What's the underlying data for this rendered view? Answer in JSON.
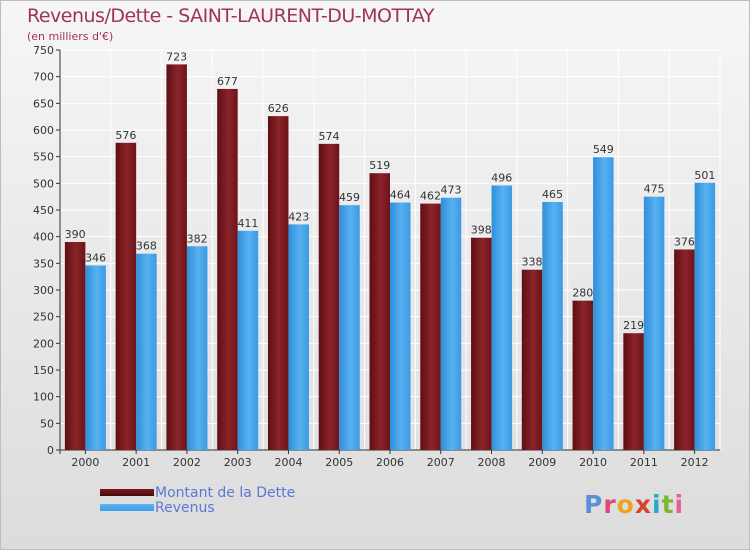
{
  "chart_data": {
    "type": "bar",
    "title": "Revenus/Dette - SAINT-LAURENT-DU-MOTTAY",
    "subtitle": "(en milliers d'€)",
    "categories": [
      "2000",
      "2001",
      "2002",
      "2003",
      "2004",
      "2005",
      "2006",
      "2007",
      "2008",
      "2009",
      "2010",
      "2011",
      "2012"
    ],
    "series": [
      {
        "name": "Montant de la Dette",
        "color": "#7a1a1e",
        "values": [
          390,
          576,
          723,
          677,
          626,
          574,
          519,
          462,
          398,
          338,
          280,
          219,
          376
        ]
      },
      {
        "name": "Revenus",
        "color": "#3d9ee6",
        "values": [
          346,
          368,
          382,
          411,
          423,
          459,
          464,
          473,
          496,
          465,
          549,
          475,
          501
        ]
      }
    ],
    "ylim": [
      0,
      750
    ],
    "yticks": [
      0,
      50,
      100,
      150,
      200,
      250,
      300,
      350,
      400,
      450,
      500,
      550,
      600,
      650,
      700,
      750
    ],
    "grid": true,
    "legend_position": "bottom-left"
  },
  "legend": {
    "debt_label": "Montant de la Dette",
    "revenue_label": "Revenus",
    "debt_color": "#7a1a1e",
    "revenue_color": "#3d9ee6"
  },
  "logo": {
    "text": "Proxiti",
    "letter_colors": [
      "#5a8fd8",
      "#e0457b",
      "#f0a21a",
      "#d6452b",
      "#2aa8c8",
      "#7cb82f",
      "#e85d9a"
    ]
  }
}
